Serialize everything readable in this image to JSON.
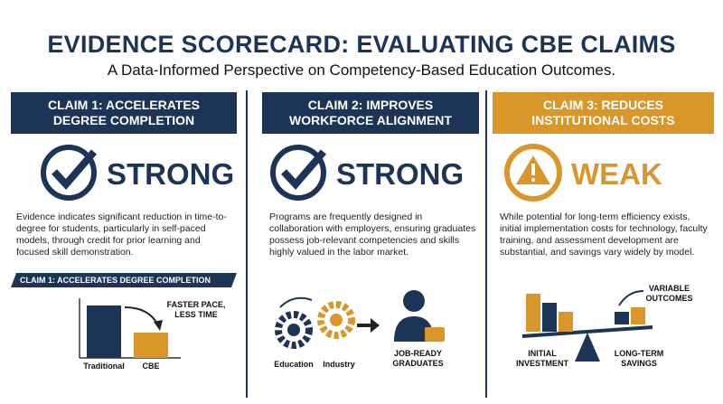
{
  "header": {
    "title": "EVIDENCE SCORECARD: EVALUATING CBE CLAIMS",
    "subtitle": "A Data-Informed Perspective on Competency-Based Education Outcomes."
  },
  "claims": [
    {
      "heading": "CLAIM 1: ACCELERATES DEGREE COMPLETION",
      "rating": "STRONG",
      "description": "Evidence indicates significant reduction in time-to-degree for students, particularly in self-paced models, through credit for prior learning and focused skill demonstration.",
      "figure": {
        "banner": "CLAIM 1: ACCELERATES DEGREE COMPLETION",
        "note": "FASTER PACE, LESS TIME",
        "labels": [
          "Traditional",
          "CBE"
        ]
      }
    },
    {
      "heading": "CLAIM 2: IMPROVES WORKFORCE ALIGNMENT",
      "rating": "STRONG",
      "description": "Programs are frequently designed in collaboration with employers, ensuring graduates possess job-relevant competencies and skills highly valued in the labor market.",
      "figure": {
        "labels": [
          "Education",
          "Industry",
          "JOB-READY GRADUATES"
        ]
      }
    },
    {
      "heading": "CLAIM 3: REDUCES INSTITUTIONAL COSTS",
      "rating": "WEAK",
      "description": "While potential for long-term efficiency exists, initial implementation costs for technology, faculty training, and assessment development are substantial, and savings vary widely by model.",
      "figure": {
        "note": "VARIABLE OUTCOMES",
        "labels": [
          "INITIAL INVESTMENT",
          "LONG-TERM SAVINGS"
        ]
      }
    }
  ]
}
